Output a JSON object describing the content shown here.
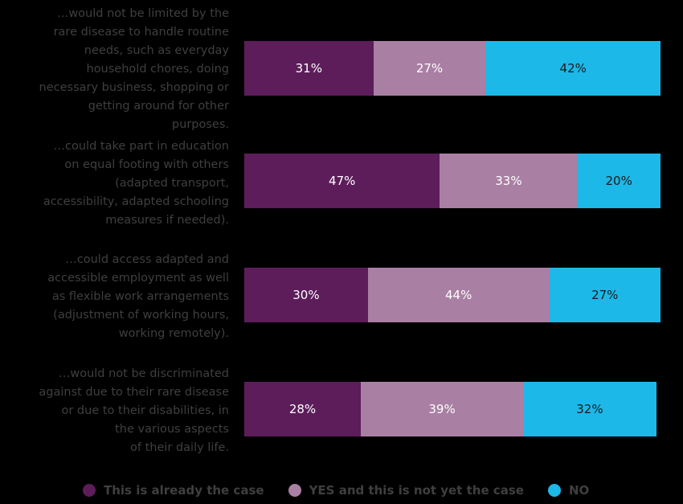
{
  "chart_data": {
    "type": "bar",
    "orientation": "horizontal",
    "stacked": true,
    "categories": [
      "…would not be limited by the rare disease to handle routine needs, such as everyday household chores, doing necessary business, shopping or getting around for other purposes.",
      "…could take part in education on equal footing with others (adapted transport, accessibility, adapted schooling measures if needed).",
      "…could access adapted and accessible employment as well as flexible work arrangements (adjustment of working hours, working remotely).",
      "…would not be discriminated against due to their rare disease or due to their disabilities, in the various aspects of their daily life."
    ],
    "category_lines": [
      [
        "…would not be limited by the",
        "rare disease to handle routine",
        "needs, such as everyday",
        "household chores, doing",
        "necessary business, shopping or",
        "getting around for other",
        "purposes."
      ],
      [
        "…could take part in education",
        "on equal footing with others",
        "(adapted transport,",
        "accessibility, adapted schooling",
        "measures if needed)."
      ],
      [
        "…could access adapted and",
        "accessible employment as well",
        "as flexible work arrangements",
        "(adjustment of working hours,",
        "working remotely)."
      ],
      [
        "…would not be discriminated",
        "against due to their rare disease",
        "or due to their disabilities, in",
        "the various aspects",
        "of their daily life."
      ]
    ],
    "series": [
      {
        "name": "This is already the case",
        "values": [
          31,
          47,
          30,
          28
        ],
        "color": "#5c1d5a",
        "label_color": "#ffffff"
      },
      {
        "name": "YES and this is not yet the case",
        "values": [
          27,
          33,
          44,
          39
        ],
        "color": "#a97fa3",
        "label_color": "#ffffff"
      },
      {
        "name": "NO",
        "values": [
          42,
          20,
          27,
          32
        ],
        "color": "#1cb8e8",
        "label_color": "#1a1a1a"
      }
    ],
    "value_suffix": "%",
    "xlim": [
      0,
      100
    ],
    "legend_position": "bottom"
  }
}
